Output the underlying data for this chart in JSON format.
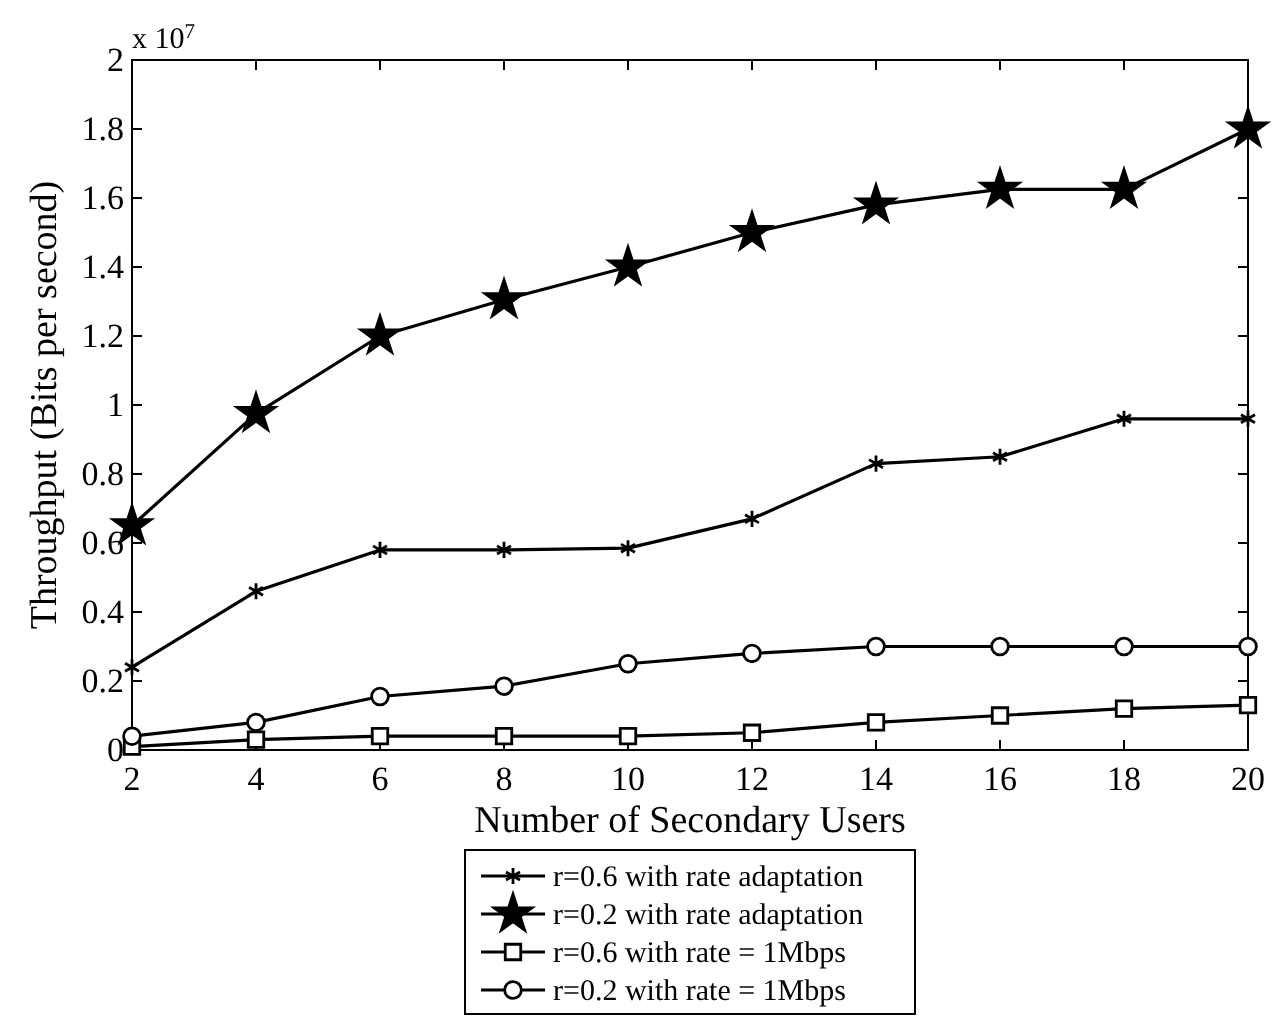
{
  "chart_data": {
    "type": "line",
    "xlabel": "Number of Secondary Users",
    "ylabel": "Throughput (Bits per second)",
    "annotations": [
      "x 10$^{7}$"
    ],
    "x": [
      2,
      4,
      6,
      8,
      10,
      12,
      14,
      16,
      18,
      20
    ],
    "xlim": [
      2,
      20
    ],
    "xticks": [
      2,
      4,
      6,
      8,
      10,
      12,
      14,
      16,
      18,
      20
    ],
    "ylim": [
      0,
      2
    ],
    "yticks": [
      0,
      0.2,
      0.4,
      0.6,
      0.8,
      1,
      1.2,
      1.4,
      1.6,
      1.8,
      2
    ],
    "grid": false,
    "legend": "bottom",
    "line_style": "solid",
    "series": [
      {
        "name": "r=0.6 with rate adaptation",
        "color": "#000000",
        "marker": "cross",
        "values": [
          0.24,
          0.46,
          0.58,
          0.58,
          0.585,
          0.67,
          0.83,
          0.85,
          0.96,
          0.96
        ]
      },
      {
        "name": "r=0.2 with rate adaptation",
        "color": "#000000",
        "marker": "star",
        "values": [
          0.65,
          0.975,
          1.2,
          1.305,
          1.4,
          1.5,
          1.58,
          1.625,
          1.625,
          1.8
        ]
      },
      {
        "name": "r=0.6 with rate = 1Mbps",
        "color": "#000000",
        "marker": "square",
        "values": [
          0.01,
          0.03,
          0.04,
          0.04,
          0.04,
          0.05,
          0.08,
          0.1,
          0.12,
          0.13
        ]
      },
      {
        "name": "r=0.2 with rate = 1Mbps",
        "color": "#000000",
        "marker": "circle",
        "values": [
          0.04,
          0.08,
          0.155,
          0.185,
          0.25,
          0.28,
          0.3,
          0.3,
          0.3,
          0.3
        ]
      }
    ]
  }
}
